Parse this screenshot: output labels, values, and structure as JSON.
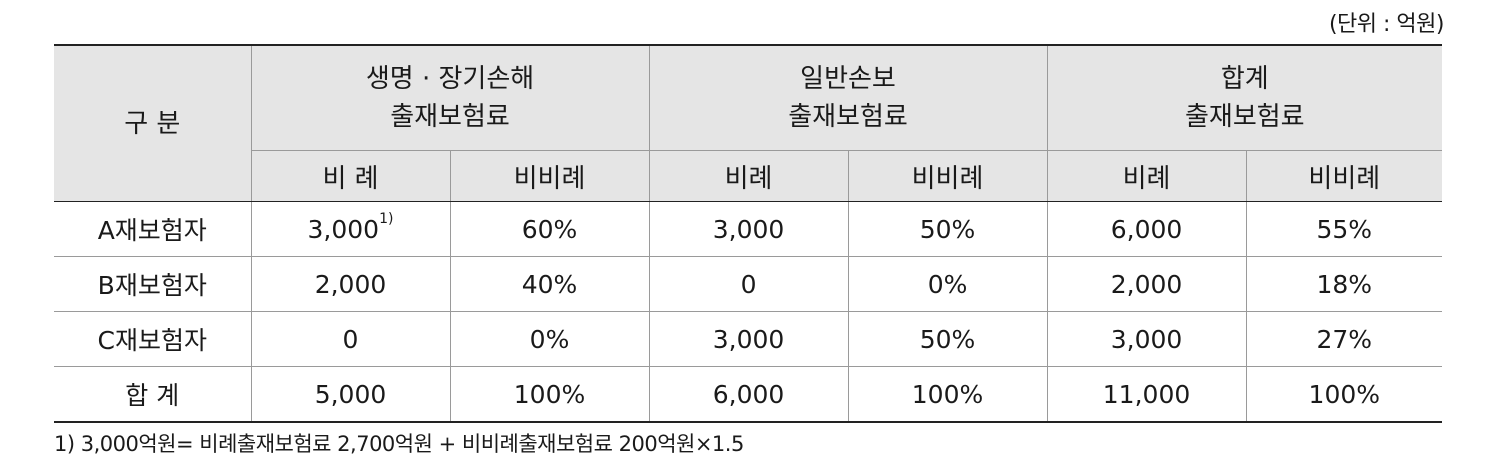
{
  "unit_label": "(단위 : 억원)",
  "header": {
    "corner": "구 분",
    "groups": [
      {
        "line1": "생명 · 장기손해",
        "line2": "출재보험료"
      },
      {
        "line1": "일반손보",
        "line2": "출재보험료"
      },
      {
        "line1": "합계",
        "line2": "출재보험료"
      }
    ],
    "subheaders": [
      "비 례",
      "비비례",
      "비례",
      "비비례",
      "비례",
      "비비례"
    ]
  },
  "rows": [
    {
      "label": "A재보험자",
      "c1": "3,000",
      "c1_sup": "1)",
      "c2": "60%",
      "c3": "3,000",
      "c4": "50%",
      "c5": "6,000",
      "c6": "55%"
    },
    {
      "label": "B재보험자",
      "c1": "2,000",
      "c2": "40%",
      "c3": "0",
      "c4": "0%",
      "c5": "2,000",
      "c6": "18%"
    },
    {
      "label": "C재보험자",
      "c1": "0",
      "c2": "0%",
      "c3": "3,000",
      "c4": "50%",
      "c5": "3,000",
      "c6": "27%"
    },
    {
      "label": "합 계",
      "c1": "5,000",
      "c2": "100%",
      "c3": "6,000",
      "c4": "100%",
      "c5": "11,000",
      "c6": "100%"
    }
  ],
  "footnote": "1) 3,000억원= 비례출재보험료 2,700억원 + 비비례출재보험료 200억원×1.5"
}
